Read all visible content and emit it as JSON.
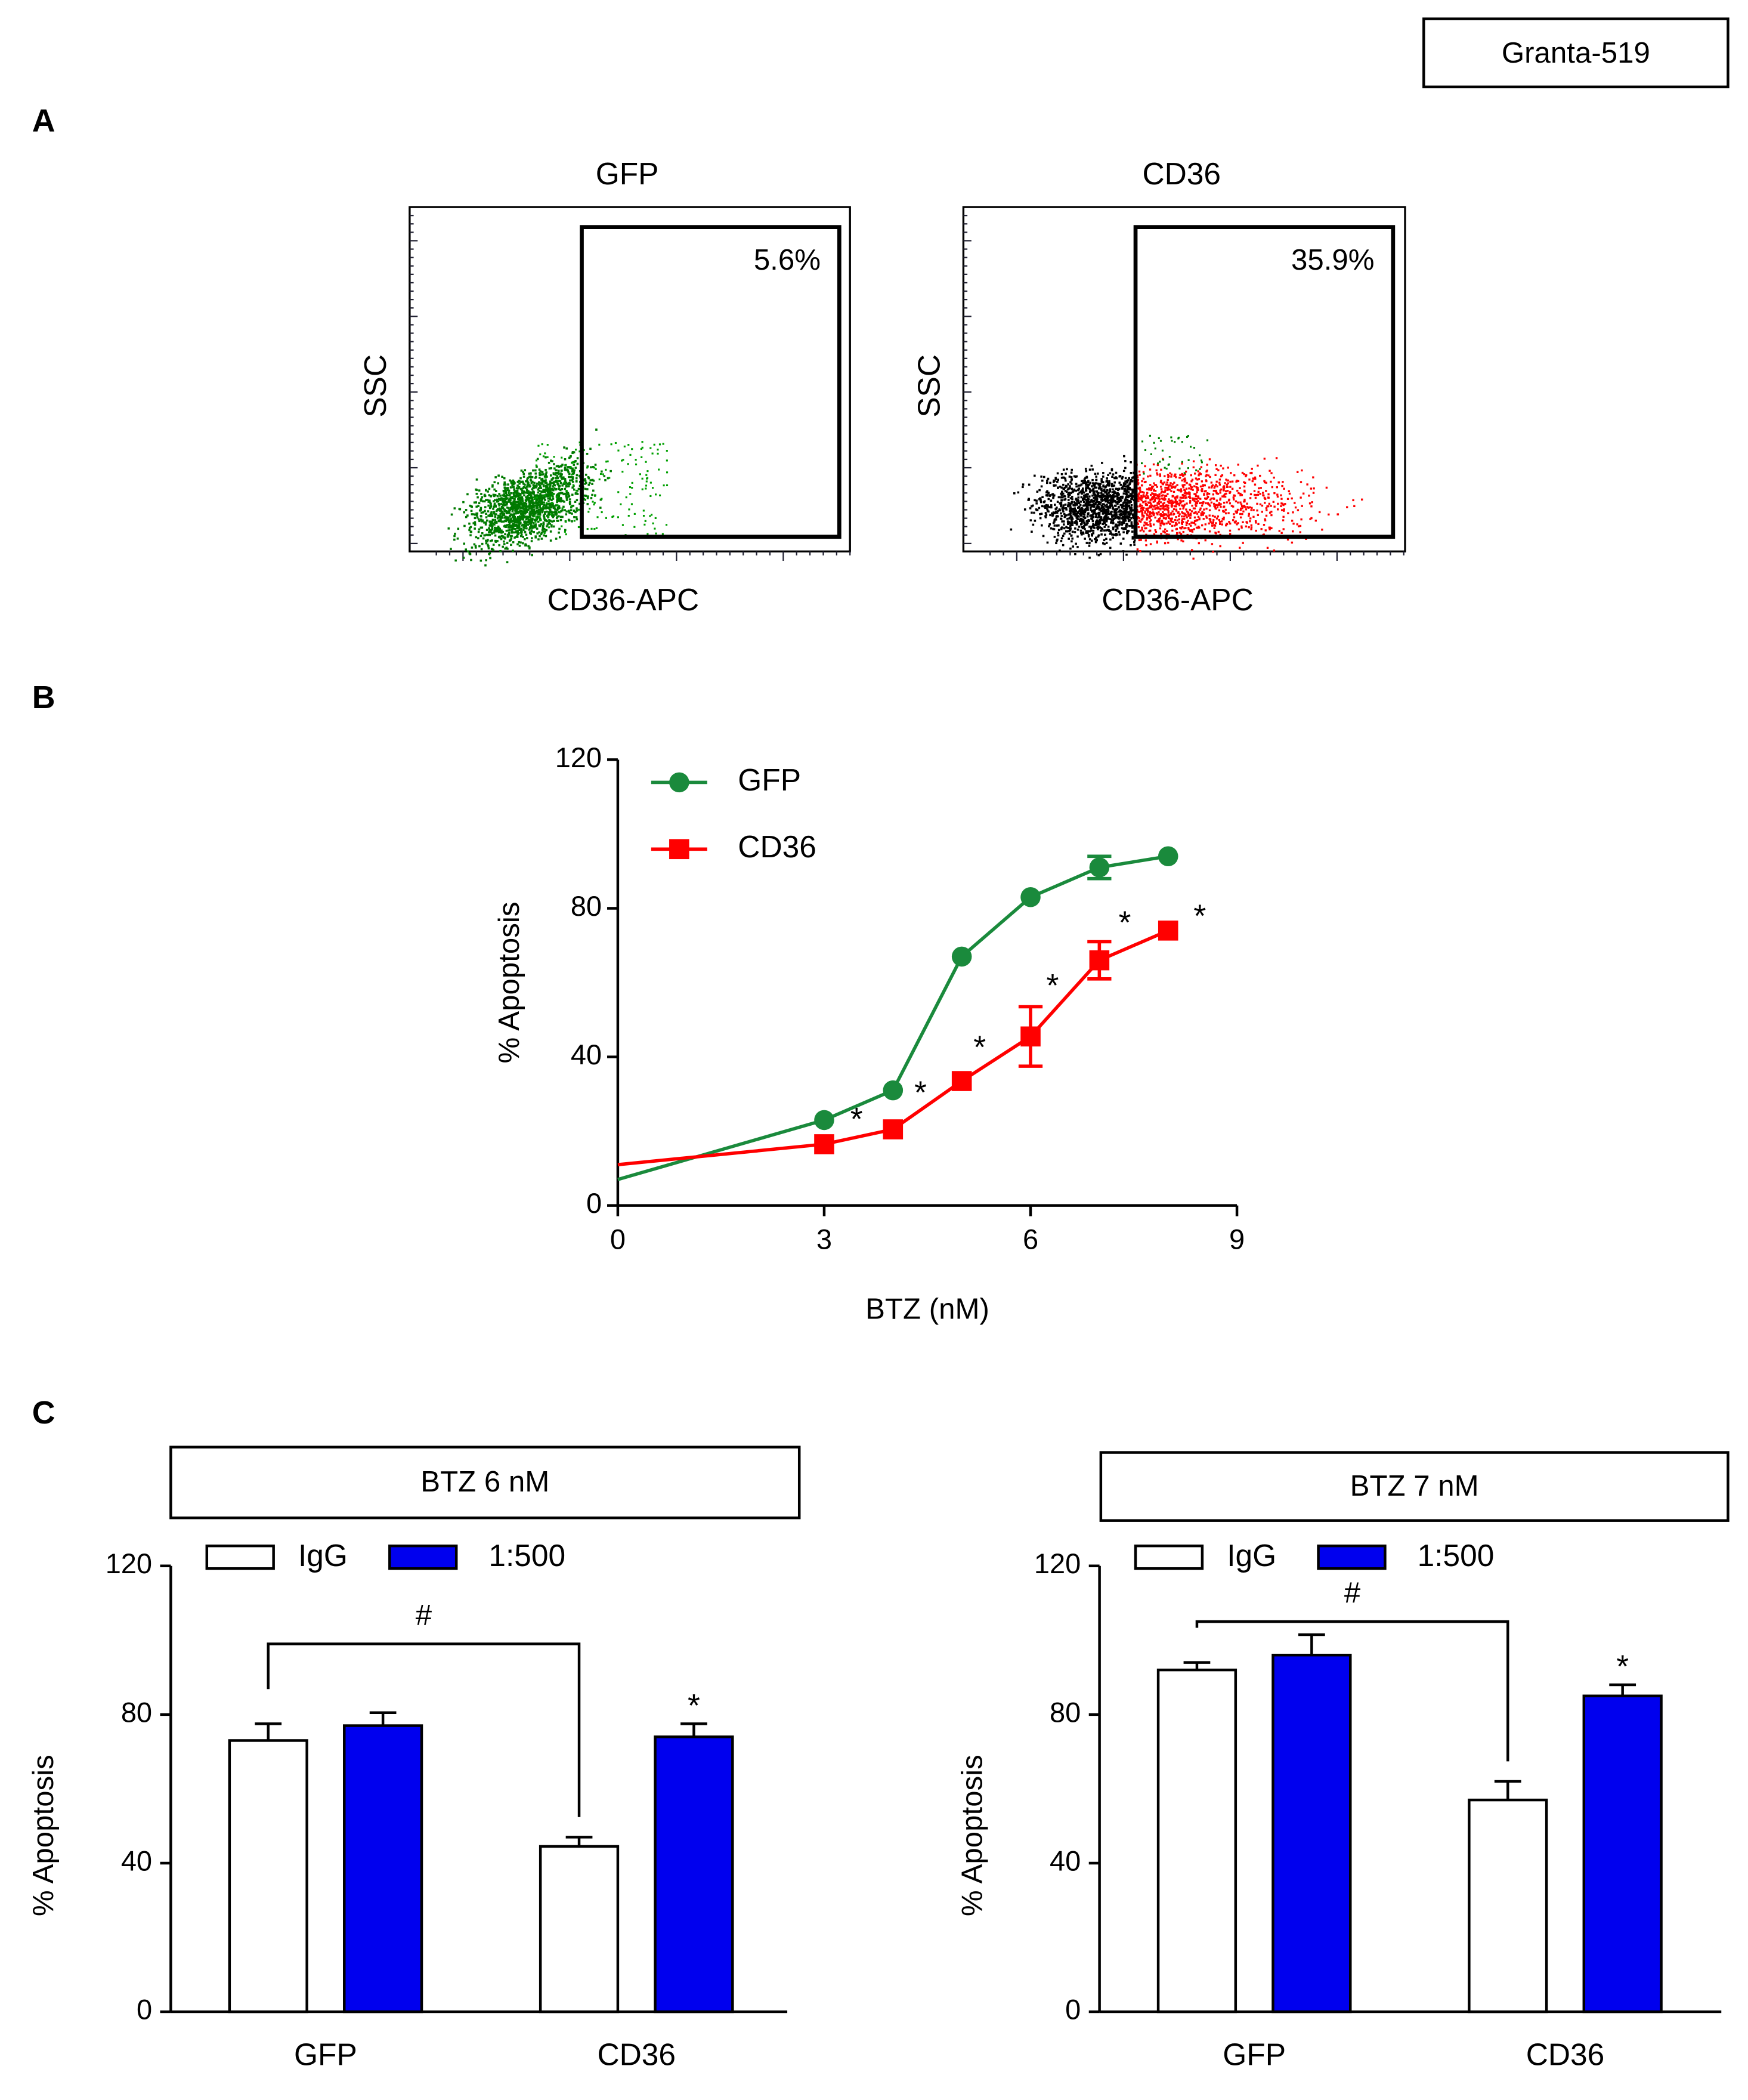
{
  "cell_line": "Granta-519",
  "panel_labels": [
    "A",
    "B",
    "C"
  ],
  "chart_data": [
    {
      "type": "flow",
      "title": "GFP",
      "title_color": "#008c3a",
      "xlabel": "CD36-APC",
      "ylabel": "SSC",
      "annotations": [
        "5.6%"
      ],
      "event_colors": [
        "#007a00",
        "#00a000"
      ]
    },
    {
      "type": "flow",
      "title": "CD36",
      "title_color": "#ff0000",
      "xlabel": "CD36-APC",
      "ylabel": "SSC",
      "annotations": [
        "35.9%"
      ],
      "event_colors": [
        "#000000",
        "#ff0000"
      ]
    },
    {
      "type": "line",
      "xlabel": "BTZ (nM)",
      "ylabel": "% Apoptosis",
      "x": [
        3,
        4,
        5,
        6,
        7,
        8
      ],
      "xlim": [
        0,
        9
      ],
      "xticks": [
        0,
        3,
        6,
        9
      ],
      "ylim": [
        0,
        120
      ],
      "yticks": [
        0,
        40,
        80,
        120
      ],
      "series": [
        {
          "name": "GFP",
          "color": "#1a8a3c",
          "marker": "circle",
          "intercept": 7,
          "values": [
            23,
            31,
            67,
            83,
            91,
            94
          ],
          "errors": [
            null,
            null,
            null,
            null,
            3,
            null
          ]
        },
        {
          "name": "CD36",
          "color": "#ff0000",
          "marker": "square",
          "intercept": 11,
          "values": [
            16.5,
            20.5,
            33.5,
            45.5,
            66,
            74
          ],
          "errors": [
            null,
            null,
            null,
            8,
            5,
            null
          ]
        }
      ],
      "annotations": [
        {
          "text": "*",
          "x": 3.47,
          "y": 22.6
        },
        {
          "text": "*",
          "x": 4.4,
          "y": 29.8
        },
        {
          "text": "*",
          "x": 5.26,
          "y": 42
        },
        {
          "text": "*",
          "x": 6.32,
          "y": 58.6
        },
        {
          "text": "*",
          "x": 7.37,
          "y": 75.5
        },
        {
          "text": "*",
          "x": 8.46,
          "y": 77.3
        }
      ]
    },
    {
      "type": "bar",
      "title": "BTZ 6 nM",
      "ylabel": "% Apoptosis",
      "categories": [
        "GFP",
        "CD36"
      ],
      "category_colors": [
        "#1a8a3c",
        "#ff0000"
      ],
      "ylim": [
        0,
        120
      ],
      "yticks": [
        0,
        40,
        80,
        120
      ],
      "series": [
        {
          "name": "IgG",
          "color": "#ffffff",
          "values": [
            73,
            44.5
          ],
          "errors": [
            4.5,
            2.5
          ]
        },
        {
          "name": "1:500",
          "color": "#0000ee",
          "values": [
            77,
            74
          ],
          "errors": [
            3.5,
            3.5
          ]
        }
      ],
      "bracket": {
        "text": "#",
        "y": 99
      },
      "annotations": [
        {
          "text": "*",
          "category": 1,
          "series": 1
        }
      ]
    },
    {
      "type": "bar",
      "title": "BTZ 7 nM",
      "ylabel": "% Apoptosis",
      "categories": [
        "GFP",
        "CD36"
      ],
      "category_colors": [
        "#1a8a3c",
        "#ff0000"
      ],
      "ylim": [
        0,
        120
      ],
      "yticks": [
        0,
        40,
        80,
        120
      ],
      "series": [
        {
          "name": "IgG",
          "color": "#ffffff",
          "values": [
            92,
            57
          ],
          "errors": [
            2,
            5
          ]
        },
        {
          "name": "1:500",
          "color": "#0000ee",
          "values": [
            96,
            85
          ],
          "errors": [
            5.5,
            3
          ]
        }
      ],
      "bracket": {
        "text": "#",
        "y": 105
      },
      "annotations": [
        {
          "text": "*",
          "category": 1,
          "series": 1
        }
      ]
    }
  ]
}
